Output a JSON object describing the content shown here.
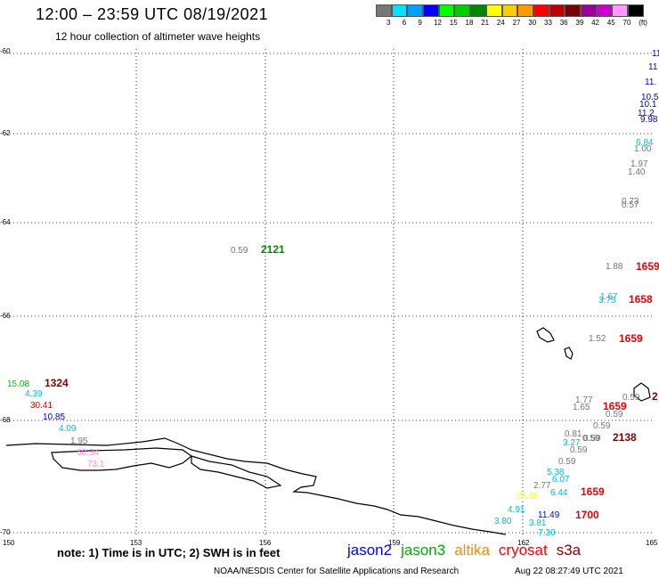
{
  "header": {
    "title": "12:00 – 23:59 UTC 08/19/2021",
    "subtitle": "12 hour collection of altimeter wave heights"
  },
  "colorbar": {
    "colors": [
      "#777777",
      "#00e5ff",
      "#00a0ff",
      "#0000ff",
      "#00ff00",
      "#00cc00",
      "#008800",
      "#ffff00",
      "#ffcc00",
      "#ff9900",
      "#ff0000",
      "#bb0000",
      "#770000",
      "#990099",
      "#cc00cc",
      "#ff99ff",
      "#000000"
    ],
    "labels": [
      "3",
      "6",
      "9",
      "12",
      "15",
      "18",
      "21",
      "24",
      "27",
      "30",
      "33",
      "36",
      "39",
      "42",
      "45",
      "70",
      "(ft)"
    ]
  },
  "axes": {
    "lat_labels": [
      "-60",
      "-62",
      "-64",
      "-66",
      "-68",
      "-70"
    ],
    "lon_labels": [
      "150",
      "153",
      "156",
      "159",
      "162",
      "165"
    ]
  },
  "observations": [
    {
      "text": "11",
      "color": "#0000cc"
    },
    {
      "text": "11",
      "color": "#0000cc"
    },
    {
      "text": "11.",
      "color": "#0000cc"
    },
    {
      "text": "10.5",
      "color": "#0000cc"
    },
    {
      "text": "10.1",
      "color": "#0000cc"
    },
    {
      "text": "11.2",
      "color": "#0000cc"
    },
    {
      "text": "9.98",
      "color": "#0000cc"
    },
    {
      "text": "6.84",
      "color": "#00bbdd"
    },
    {
      "text": "1.00",
      "color": "#777777"
    },
    {
      "text": "1.97",
      "color": "#777777"
    },
    {
      "text": "1.40",
      "color": "#777777"
    },
    {
      "text": "0.73",
      "color": "#777777"
    },
    {
      "text": "0.57",
      "color": "#777777"
    },
    {
      "text": "0.59",
      "color": "#777777"
    },
    {
      "text": "1.88",
      "color": "#777777"
    },
    {
      "text": "1.67",
      "color": "#00bbdd"
    },
    {
      "text": "3.75",
      "color": "#00bbdd"
    },
    {
      "text": "1.52",
      "color": "#777777"
    },
    {
      "text": "15.08",
      "color": "#00bb00"
    },
    {
      "text": "4.39",
      "color": "#00bbdd"
    },
    {
      "text": "30.41",
      "color": "#cc0000"
    },
    {
      "text": "10.85",
      "color": "#0000cc"
    },
    {
      "text": "4.09",
      "color": "#00bbdd"
    },
    {
      "text": "1.95",
      "color": "#777777"
    },
    {
      "text": "68.34",
      "color": "#ff88ff"
    },
    {
      "text": "73.1",
      "color": "#ff88ff"
    },
    {
      "text": "1.77",
      "color": "#777777"
    },
    {
      "text": "1.65",
      "color": "#777777"
    },
    {
      "text": "0.59",
      "color": "#777777"
    },
    {
      "text": "0.59",
      "color": "#777777"
    },
    {
      "text": "0.59",
      "color": "#777777"
    },
    {
      "text": "0.81",
      "color": "#777777"
    },
    {
      "text": "0.59",
      "color": "#777777"
    },
    {
      "text": "3.27",
      "color": "#00bbdd"
    },
    {
      "text": "0.59",
      "color": "#777777"
    },
    {
      "text": "0.59",
      "color": "#777777"
    },
    {
      "text": "5.38",
      "color": "#00bbdd"
    },
    {
      "text": "6.07",
      "color": "#00bbdd"
    },
    {
      "text": "2.77",
      "color": "#777777"
    },
    {
      "text": "6.44",
      "color": "#00bbdd"
    },
    {
      "text": "25.85",
      "color": "#ffff00"
    },
    {
      "text": "4.91",
      "color": "#00bbdd"
    },
    {
      "text": "3.80",
      "color": "#00bbdd"
    },
    {
      "text": "11.49",
      "color": "#0000cc"
    },
    {
      "text": "3.81",
      "color": "#00bbdd"
    },
    {
      "text": "7.30",
      "color": "#00bbdd"
    },
    {
      "text": "0.59",
      "color": "#777777"
    }
  ],
  "times": [
    {
      "text": "2121",
      "color": "#008800"
    },
    {
      "text": "1659",
      "color": "#ee0000"
    },
    {
      "text": "1658",
      "color": "#ee0000"
    },
    {
      "text": "1659",
      "color": "#ee0000"
    },
    {
      "text": "1324",
      "color": "#880000"
    },
    {
      "text": "2",
      "color": "#880000"
    },
    {
      "text": "1659",
      "color": "#ee0000"
    },
    {
      "text": "2138",
      "color": "#880000"
    },
    {
      "text": "1659",
      "color": "#ee0000"
    },
    {
      "text": "1700",
      "color": "#ee0000"
    }
  ],
  "footer": {
    "note": "note:  1) Time is in UTC;  2) SWH is in feet",
    "satellites": [
      {
        "name": "jason2",
        "color": "#0000ff"
      },
      {
        "name": "jason3",
        "color": "#00aa00"
      },
      {
        "name": "altika",
        "color": "#ff8800"
      },
      {
        "name": "cryosat",
        "color": "#ff0000"
      },
      {
        "name": "s3a",
        "color": "#880000"
      }
    ],
    "credit": "NOAA/NESDIS Center for Satellite Applications and Research",
    "timestamp": "Aug 22 08:27:49 UTC 2021"
  }
}
